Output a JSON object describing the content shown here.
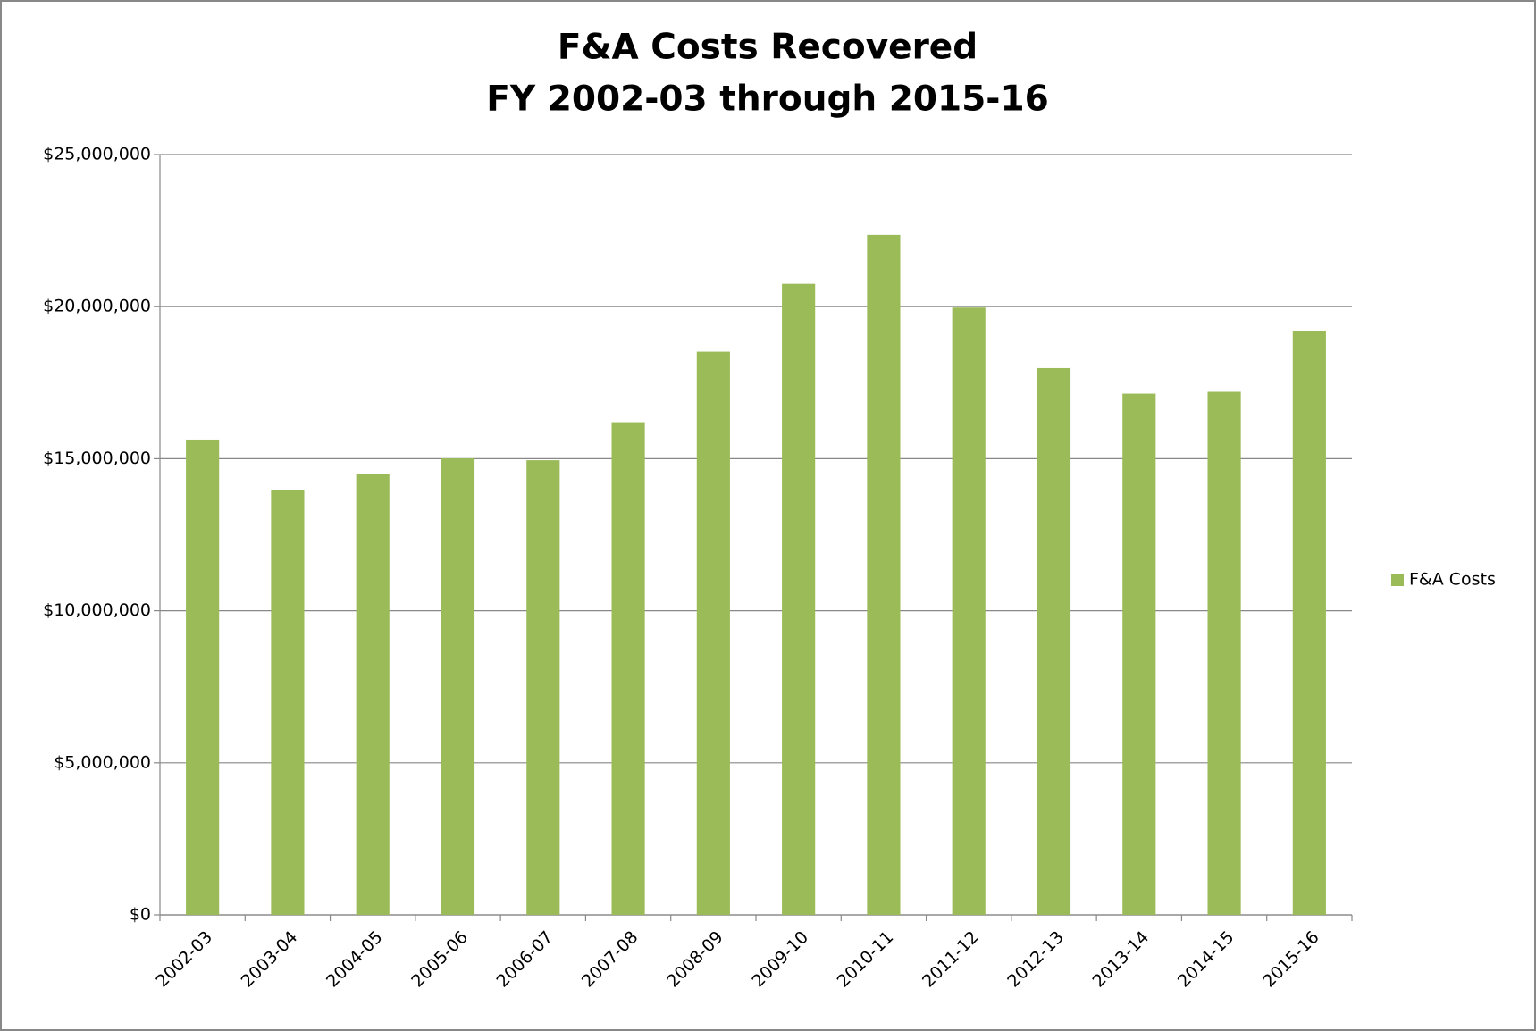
{
  "chart_data": {
    "type": "bar",
    "title": "F&A Costs Recovered",
    "subtitle": "FY 2002-03 through 2015-16",
    "categories": [
      "2002-03",
      "2003-04",
      "2004-05",
      "2005-06",
      "2006-07",
      "2007-08",
      "2008-09",
      "2009-10",
      "2010-11",
      "2011-12",
      "2012-13",
      "2013-14",
      "2014-15",
      "2015-16"
    ],
    "series": [
      {
        "name": "F&A Costs",
        "color": "#9bbb59",
        "values": [
          15630000,
          13980000,
          14500000,
          15010000,
          14950000,
          16200000,
          18520000,
          20750000,
          22360000,
          19970000,
          17980000,
          17140000,
          17200000,
          19200000
        ]
      }
    ],
    "ylim": [
      0,
      25000000
    ],
    "yticks": [
      {
        "value": 0,
        "label": "$0"
      },
      {
        "value": 5000000,
        "label": "$5,000,000"
      },
      {
        "value": 10000000,
        "label": "$10,000,000"
      },
      {
        "value": 15000000,
        "label": "$15,000,000"
      },
      {
        "value": 20000000,
        "label": "$20,000,000"
      },
      {
        "value": 25000000,
        "label": "$25,000,000"
      }
    ],
    "grid": true,
    "legend": "right"
  }
}
